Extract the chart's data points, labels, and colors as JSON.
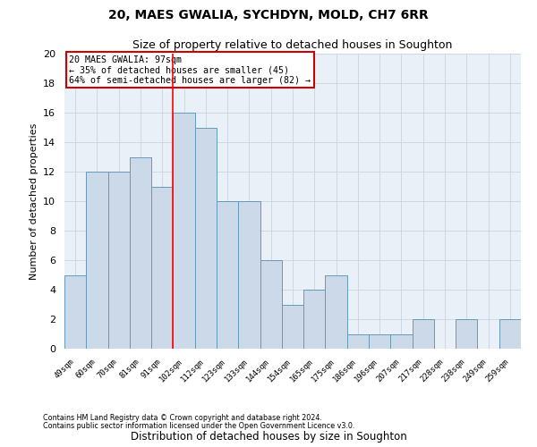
{
  "title1": "20, MAES GWALIA, SYCHDYN, MOLD, CH7 6RR",
  "title2": "Size of property relative to detached houses in Soughton",
  "xlabel": "Distribution of detached houses by size in Soughton",
  "ylabel": "Number of detached properties",
  "categories": [
    "49sqm",
    "60sqm",
    "70sqm",
    "81sqm",
    "91sqm",
    "102sqm",
    "112sqm",
    "123sqm",
    "133sqm",
    "144sqm",
    "154sqm",
    "165sqm",
    "175sqm",
    "186sqm",
    "196sqm",
    "207sqm",
    "217sqm",
    "228sqm",
    "238sqm",
    "249sqm",
    "259sqm"
  ],
  "values": [
    5,
    12,
    12,
    13,
    11,
    16,
    15,
    10,
    10,
    6,
    3,
    4,
    5,
    1,
    1,
    1,
    2,
    0,
    2,
    0,
    2
  ],
  "bar_color": "#ccd9e8",
  "bar_edge_color": "#6699bb",
  "grid_color": "#c8d4e0",
  "bg_color": "#eaf0f8",
  "red_line_x": 4.5,
  "annotation_text": "20 MAES GWALIA: 97sqm\n← 35% of detached houses are smaller (45)\n64% of semi-detached houses are larger (82) →",
  "annotation_box_color": "#cc0000",
  "ylim": [
    0,
    20
  ],
  "yticks": [
    0,
    2,
    4,
    6,
    8,
    10,
    12,
    14,
    16,
    18,
    20
  ],
  "footer1": "Contains HM Land Registry data © Crown copyright and database right 2024.",
  "footer2": "Contains public sector information licensed under the Open Government Licence v3.0."
}
